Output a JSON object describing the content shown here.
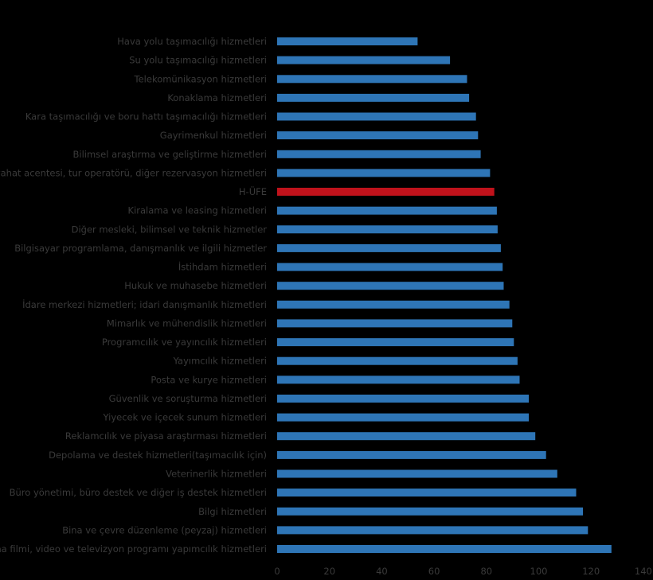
{
  "chart_data": {
    "type": "bar",
    "orientation": "horizontal",
    "title": "",
    "xlabel": "",
    "ylabel": "",
    "xlim": [
      0,
      140
    ],
    "xticks": [
      0,
      20,
      40,
      60,
      80,
      100,
      120,
      140
    ],
    "grid": false,
    "legend": "none",
    "colors": {
      "default": "#2e75b6",
      "highlight": "#c0121b",
      "text": "#3a3a3a",
      "background": "#000000"
    },
    "highlight_category": "H-ÜFE",
    "categories": [
      "Hava yolu taşımacılığı hizmetleri",
      "Su yolu taşımacılığı hizmetleri",
      "Telekomünikasyon hizmetleri",
      "Konaklama hizmetleri",
      "Kara taşımacılığı ve boru hattı taşımacılığı hizmetleri",
      "Gayrimenkul hizmetleri",
      "Bilimsel araştırma ve geliştirme hizmetleri",
      "Seyahat acentesi, tur operatörü, diğer rezervasyon hizmetleri",
      "H-ÜFE",
      "Kiralama ve leasing hizmetleri",
      "Diğer mesleki, bilimsel ve teknik hizmetler",
      "Bilgisayar programlama, danışmanlık ve ilgili hizmetler",
      "İstihdam hizmetleri",
      "Hukuk ve muhasebe hizmetleri",
      "İdare merkezi hizmetleri; idari danışmanlık hizmetleri",
      "Mimarlık ve mühendislik hizmetleri",
      "Programcılık ve yayıncılık hizmetleri",
      "Yayımcılık hizmetleri",
      "Posta ve kurye hizmetleri",
      "Güvenlik ve soruşturma hizmetleri",
      "Yiyecek ve içecek sunum hizmetleri",
      "Reklamcılık ve piyasa araştırması hizmetleri",
      "Depolama ve destek hizmetleri(taşımacılık için)",
      "Veterinerlik hizmetleri",
      "Büro yönetimi, büro destek ve diğer iş destek hizmetleri",
      "Bilgi hizmetleri",
      "Bina ve çevre düzenleme (peyzaj) hizmetleri",
      "Sinema filmi, video ve televizyon programı yapımcılık hizmetleri"
    ],
    "values": [
      53.7,
      66.1,
      72.6,
      73.4,
      76.0,
      76.8,
      77.8,
      81.4,
      83.0,
      84.0,
      84.3,
      85.5,
      86.2,
      86.6,
      88.8,
      89.9,
      90.5,
      91.9,
      92.7,
      96.2,
      96.2,
      98.7,
      102.8,
      107.1,
      114.3,
      116.9,
      118.8,
      127.8
    ]
  }
}
